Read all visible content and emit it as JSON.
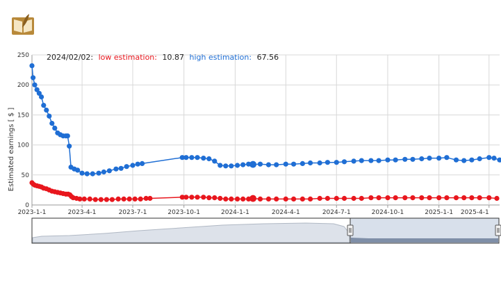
{
  "brand": {
    "logo_icon": "book-quill-logo-icon"
  },
  "tooltip": {
    "date": "2024/02/02:",
    "low_label": "low estimation:",
    "low_value": "10.87",
    "high_label": "high estimation:",
    "high_value": "67.56"
  },
  "navigator": {
    "handle_left_icon": "drag-handle-icon",
    "handle_right_icon": "drag-handle-icon"
  },
  "chart_data": {
    "type": "line",
    "title": "",
    "xlabel": "",
    "ylabel": "Estimated earnings [ $ ]",
    "ylim": [
      0,
      250
    ],
    "y_ticks": [
      "0",
      "50",
      "100",
      "150",
      "200",
      "250"
    ],
    "x_ticks": [
      "2023-1-1",
      "2023-4-1",
      "2023-7-1",
      "2023-10-1",
      "2024-1-1",
      "2024-4-1",
      "2024-7-1",
      "2024-10-1",
      "2025-1-1",
      "2025-4-1"
    ],
    "x_range": [
      "2023-01-01",
      "2025-04-20"
    ],
    "colors": {
      "low": "#e8161d",
      "high": "#1f6ed4",
      "grid": "#d8d8d8"
    },
    "series": [
      {
        "name": "low estimation",
        "color": "#e8161d",
        "points": [
          [
            "2023-01-01",
            37
          ],
          [
            "2023-01-03",
            35
          ],
          [
            "2023-01-06",
            33
          ],
          [
            "2023-01-10",
            32
          ],
          [
            "2023-01-14",
            31
          ],
          [
            "2023-01-18",
            30
          ],
          [
            "2023-01-22",
            28
          ],
          [
            "2023-01-27",
            27
          ],
          [
            "2023-02-01",
            25
          ],
          [
            "2023-02-06",
            23
          ],
          [
            "2023-02-11",
            22
          ],
          [
            "2023-02-16",
            21
          ],
          [
            "2023-02-21",
            20
          ],
          [
            "2023-02-26",
            19
          ],
          [
            "2023-03-03",
            18
          ],
          [
            "2023-03-07",
            18
          ],
          [
            "2023-03-10",
            17
          ],
          [
            "2023-03-13",
            14
          ],
          [
            "2023-03-16",
            12
          ],
          [
            "2023-03-22",
            11
          ],
          [
            "2023-03-28",
            10
          ],
          [
            "2023-04-05",
            10
          ],
          [
            "2023-04-15",
            10
          ],
          [
            "2023-04-25",
            9
          ],
          [
            "2023-05-05",
            9
          ],
          [
            "2023-05-15",
            9
          ],
          [
            "2023-05-25",
            9
          ],
          [
            "2023-06-05",
            10
          ],
          [
            "2023-06-15",
            10
          ],
          [
            "2023-06-25",
            10
          ],
          [
            "2023-07-05",
            10
          ],
          [
            "2023-07-15",
            10
          ],
          [
            "2023-07-25",
            11
          ],
          [
            "2023-08-01",
            11
          ],
          [
            "2023-09-28",
            13
          ],
          [
            "2023-10-05",
            13
          ],
          [
            "2023-10-15",
            13
          ],
          [
            "2023-10-25",
            13
          ],
          [
            "2023-11-05",
            13
          ],
          [
            "2023-11-15",
            12
          ],
          [
            "2023-11-25",
            12
          ],
          [
            "2023-12-05",
            11
          ],
          [
            "2023-12-15",
            10
          ],
          [
            "2023-12-25",
            10
          ],
          [
            "2024-01-05",
            10
          ],
          [
            "2024-01-15",
            10
          ],
          [
            "2024-01-25",
            10
          ],
          [
            "2024-02-02",
            10.87
          ],
          [
            "2024-02-15",
            10
          ],
          [
            "2024-03-01",
            10
          ],
          [
            "2024-03-15",
            10
          ],
          [
            "2024-04-01",
            10
          ],
          [
            "2024-04-15",
            10
          ],
          [
            "2024-05-01",
            10
          ],
          [
            "2024-05-15",
            10
          ],
          [
            "2024-06-01",
            11
          ],
          [
            "2024-06-15",
            11
          ],
          [
            "2024-07-01",
            11
          ],
          [
            "2024-07-15",
            11
          ],
          [
            "2024-08-01",
            11
          ],
          [
            "2024-08-15",
            11
          ],
          [
            "2024-09-01",
            12
          ],
          [
            "2024-09-15",
            12
          ],
          [
            "2024-10-01",
            12
          ],
          [
            "2024-10-15",
            12
          ],
          [
            "2024-11-01",
            12
          ],
          [
            "2024-11-15",
            12
          ],
          [
            "2024-12-01",
            12
          ],
          [
            "2024-12-15",
            12
          ],
          [
            "2025-01-01",
            12
          ],
          [
            "2025-01-15",
            12
          ],
          [
            "2025-02-01",
            12
          ],
          [
            "2025-02-15",
            12
          ],
          [
            "2025-03-01",
            12
          ],
          [
            "2025-03-15",
            12
          ],
          [
            "2025-04-01",
            12
          ],
          [
            "2025-04-15",
            11
          ]
        ]
      },
      {
        "name": "high estimation",
        "color": "#1f6ed4",
        "points": [
          [
            "2023-01-01",
            232
          ],
          [
            "2023-01-03",
            212
          ],
          [
            "2023-01-06",
            200
          ],
          [
            "2023-01-10",
            192
          ],
          [
            "2023-01-14",
            186
          ],
          [
            "2023-01-18",
            180
          ],
          [
            "2023-01-22",
            166
          ],
          [
            "2023-01-27",
            158
          ],
          [
            "2023-02-01",
            148
          ],
          [
            "2023-02-06",
            136
          ],
          [
            "2023-02-11",
            128
          ],
          [
            "2023-02-16",
            120
          ],
          [
            "2023-02-21",
            117
          ],
          [
            "2023-02-26",
            115
          ],
          [
            "2023-03-03",
            115
          ],
          [
            "2023-03-06",
            115
          ],
          [
            "2023-03-09",
            98
          ],
          [
            "2023-03-12",
            63
          ],
          [
            "2023-03-18",
            60
          ],
          [
            "2023-03-24",
            58
          ],
          [
            "2023-04-01",
            53
          ],
          [
            "2023-04-10",
            52
          ],
          [
            "2023-04-20",
            52
          ],
          [
            "2023-05-01",
            53
          ],
          [
            "2023-05-10",
            55
          ],
          [
            "2023-05-20",
            57
          ],
          [
            "2023-06-01",
            60
          ],
          [
            "2023-06-10",
            61
          ],
          [
            "2023-06-20",
            64
          ],
          [
            "2023-07-01",
            66
          ],
          [
            "2023-07-10",
            68
          ],
          [
            "2023-07-18",
            69
          ],
          [
            "2023-09-28",
            79
          ],
          [
            "2023-10-05",
            79
          ],
          [
            "2023-10-15",
            79
          ],
          [
            "2023-10-25",
            79
          ],
          [
            "2023-11-05",
            78
          ],
          [
            "2023-11-15",
            77
          ],
          [
            "2023-11-25",
            73
          ],
          [
            "2023-12-05",
            66
          ],
          [
            "2023-12-15",
            65
          ],
          [
            "2023-12-25",
            65
          ],
          [
            "2024-01-05",
            66
          ],
          [
            "2024-01-15",
            67
          ],
          [
            "2024-01-25",
            68
          ],
          [
            "2024-02-02",
            67.56
          ],
          [
            "2024-02-15",
            68
          ],
          [
            "2024-03-01",
            67
          ],
          [
            "2024-03-15",
            67
          ],
          [
            "2024-04-01",
            68
          ],
          [
            "2024-04-15",
            68
          ],
          [
            "2024-05-01",
            69
          ],
          [
            "2024-05-15",
            70
          ],
          [
            "2024-06-01",
            70
          ],
          [
            "2024-06-15",
            71
          ],
          [
            "2024-07-01",
            71
          ],
          [
            "2024-07-15",
            72
          ],
          [
            "2024-08-01",
            73
          ],
          [
            "2024-08-15",
            74
          ],
          [
            "2024-09-01",
            74
          ],
          [
            "2024-09-15",
            74
          ],
          [
            "2024-10-01",
            75
          ],
          [
            "2024-10-15",
            75
          ],
          [
            "2024-11-01",
            76
          ],
          [
            "2024-11-15",
            76
          ],
          [
            "2024-12-01",
            77
          ],
          [
            "2024-12-15",
            78
          ],
          [
            "2025-01-01",
            78
          ],
          [
            "2025-01-15",
            79
          ],
          [
            "2025-02-01",
            75
          ],
          [
            "2025-02-15",
            74
          ],
          [
            "2025-03-01",
            75
          ],
          [
            "2025-03-15",
            77
          ],
          [
            "2025-04-01",
            79
          ],
          [
            "2025-04-10",
            78
          ],
          [
            "2025-04-20",
            75
          ]
        ]
      }
    ]
  }
}
